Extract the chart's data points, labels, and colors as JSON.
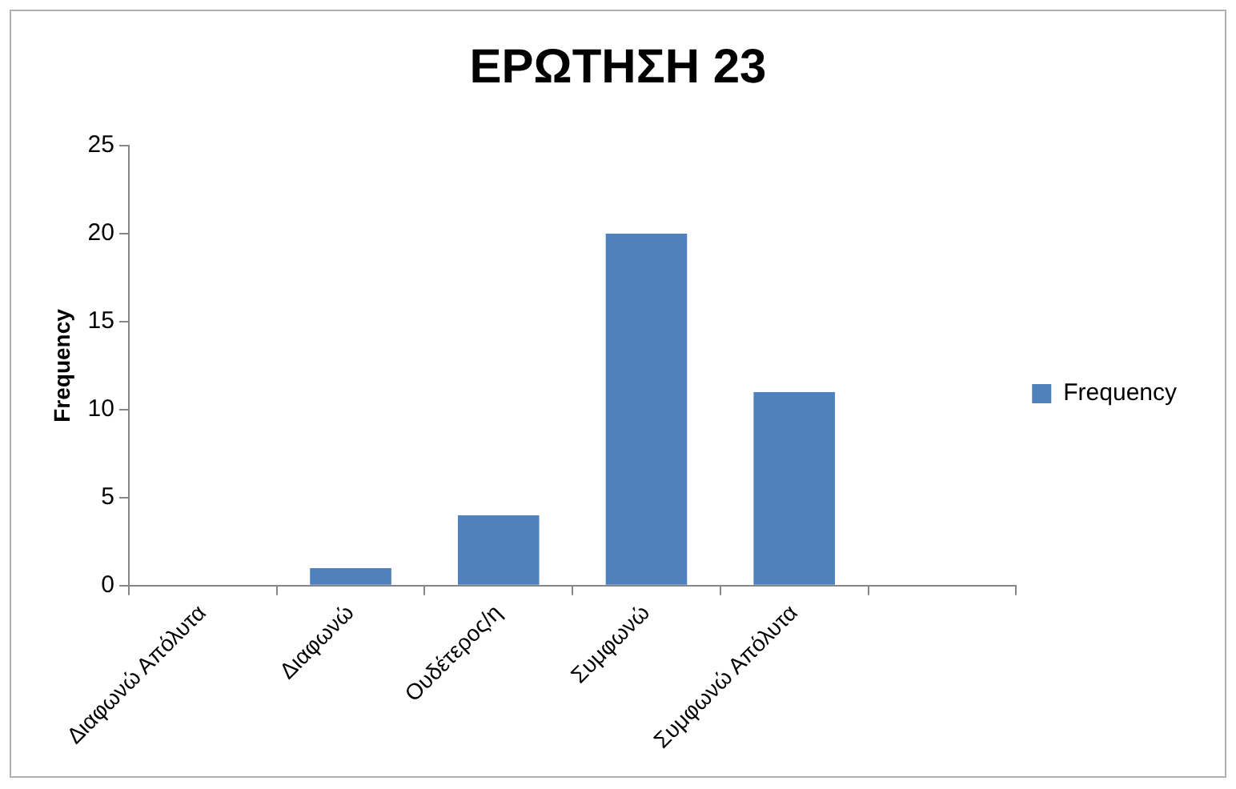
{
  "chart_data": {
    "type": "bar",
    "title": "ΕΡΩΤΗΣΗ 23",
    "ylabel": "Frequency",
    "categories": [
      "Διαφωνώ Απόλυτα",
      "Διαφωνώ",
      "Ουδέτερος/η",
      "Συμφωνώ",
      "Συμφωνώ Απόλυτα",
      null
    ],
    "series": [
      {
        "name": "Frequency",
        "color": "#4f81bd",
        "values": [
          0,
          1,
          4,
          20,
          11,
          0
        ]
      }
    ],
    "ylim": [
      0,
      25
    ],
    "yticks": [
      0,
      5,
      10,
      15,
      20,
      25
    ],
    "grid": false,
    "legend": "right"
  }
}
